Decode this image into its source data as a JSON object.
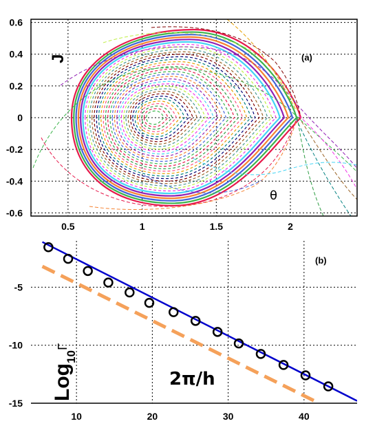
{
  "chart_data": [
    {
      "type": "scatter",
      "panel_label": "(a)",
      "xlabel": "θ",
      "ylabel": "J",
      "xlim": [
        0.25,
        2.45
      ],
      "ylim": [
        -0.62,
        0.62
      ],
      "xticks": [
        "0.5",
        "1",
        "1.5",
        "2"
      ],
      "xtick_values": [
        0.5,
        1,
        1.5,
        2
      ],
      "yticks": [
        "0.6",
        "0.4",
        "0.2",
        "0",
        "-0.2",
        "-0.4",
        "-0.6"
      ],
      "ytick_values": [
        0.6,
        0.4,
        0.2,
        0,
        -0.2,
        -0.4,
        -0.6
      ],
      "grid": true,
      "description": "phase space orbits (Poincaré section)",
      "center": [
        1.07,
        0.0
      ],
      "separatrix_x": 2.07
    },
    {
      "type": "line",
      "panel_label": "(b)",
      "xlabel": "2π/h",
      "ylabel": "Log",
      "ylabel_sub": "10",
      "ylabel_tail": "Γ",
      "xlim": [
        4,
        47
      ],
      "ylim": [
        -15,
        -1
      ],
      "xticks": [
        "10",
        "20",
        "30",
        "40"
      ],
      "xtick_values": [
        10,
        20,
        30,
        40
      ],
      "yticks": [
        "-5",
        "-10",
        "-15"
      ],
      "ytick_values": [
        -5,
        -10,
        -15
      ],
      "grid": true,
      "series": [
        {
          "style": "circle-markers",
          "color": "#000000",
          "x": [
            6.3,
            8.9,
            11.5,
            14.2,
            17.0,
            19.6,
            22.8,
            25.7,
            28.6,
            31.4,
            34.3,
            37.3,
            40.2,
            43.2
          ],
          "y": [
            -1.55,
            -2.55,
            -3.6,
            -4.6,
            -5.45,
            -6.35,
            -7.15,
            -7.9,
            -8.85,
            -9.85,
            -10.75,
            -11.7,
            -12.6,
            -13.55
          ]
        },
        {
          "style": "solid-fit",
          "color": "#0000cc",
          "x": [
            5.5,
            47
          ],
          "y": [
            -1.1,
            -14.8
          ]
        },
        {
          "style": "dashed",
          "color": "#f5a15a",
          "x": [
            5.5,
            42.0
          ],
          "y": [
            -3.2,
            -15.0
          ]
        }
      ]
    }
  ]
}
